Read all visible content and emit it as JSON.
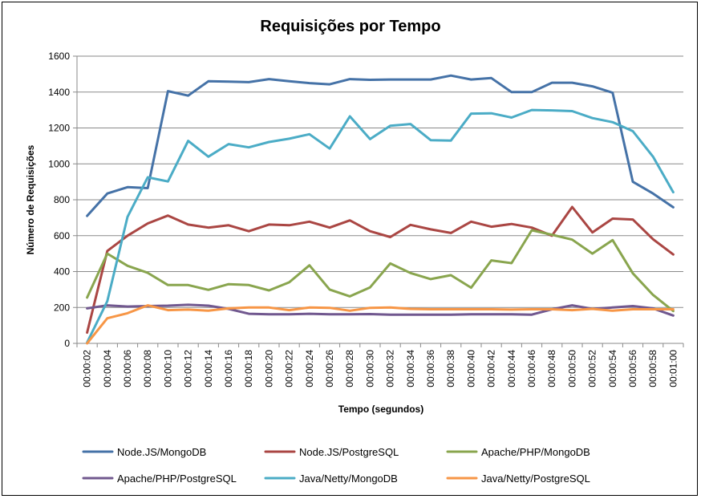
{
  "chart_data": {
    "type": "line",
    "title": "Requisições por Tempo",
    "xlabel": "Tempo (segundos)",
    "ylabel": "Número de Requisições",
    "ylim": [
      0,
      1600
    ],
    "yticks": [
      0,
      200,
      400,
      600,
      800,
      1000,
      1200,
      1400,
      1600
    ],
    "grid": true,
    "legend_position": "bottom",
    "x": [
      "00:00:02",
      "00:00:04",
      "00:00:06",
      "00:00:08",
      "00:00:10",
      "00:00:12",
      "00:00:14",
      "00:00:16",
      "00:00:18",
      "00:00:20",
      "00:00:22",
      "00:00:24",
      "00:00:26",
      "00:00:28",
      "00:00:30",
      "00:00:32",
      "00:00:34",
      "00:00:36",
      "00:00:38",
      "00:00:40",
      "00:00:42",
      "00:00:44",
      "00:00:46",
      "00:00:48",
      "00:00:50",
      "00:00:52",
      "00:00:54",
      "00:00:56",
      "00:00:58",
      "00:01:00"
    ],
    "series": [
      {
        "name": "Node.JS/MongoDB",
        "color": "#4572A7",
        "values": [
          710,
          835,
          870,
          865,
          1405,
          1380,
          1460,
          1458,
          1455,
          1472,
          1460,
          1450,
          1443,
          1472,
          1468,
          1470,
          1470,
          1470,
          1492,
          1470,
          1478,
          1400,
          1400,
          1452,
          1452,
          1432,
          1396,
          900,
          835,
          758
        ]
      },
      {
        "name": "Node.JS/PostgreSQL",
        "color": "#AA4643",
        "values": [
          60,
          515,
          600,
          668,
          712,
          662,
          645,
          658,
          625,
          662,
          658,
          678,
          645,
          685,
          625,
          592,
          660,
          635,
          615,
          678,
          650,
          665,
          645,
          600,
          760,
          618,
          695,
          690,
          580,
          495
        ]
      },
      {
        "name": "Apache/PHP/MongoDB",
        "color": "#89A54E",
        "values": [
          255,
          500,
          432,
          393,
          325,
          325,
          298,
          330,
          325,
          295,
          340,
          435,
          300,
          262,
          312,
          445,
          392,
          358,
          380,
          310,
          462,
          447,
          630,
          605,
          578,
          500,
          575,
          390,
          270,
          180
        ]
      },
      {
        "name": "Apache/PHP/PostgreSQL",
        "color": "#71588F",
        "values": [
          195,
          212,
          205,
          208,
          210,
          215,
          210,
          192,
          165,
          162,
          162,
          165,
          162,
          162,
          163,
          160,
          160,
          160,
          160,
          162,
          162,
          162,
          160,
          190,
          212,
          192,
          200,
          208,
          195,
          155
        ]
      },
      {
        "name": "Java/Netty/MongoDB",
        "color": "#4BACC6",
        "values": [
          5,
          235,
          705,
          925,
          902,
          1128,
          1040,
          1110,
          1092,
          1122,
          1140,
          1165,
          1085,
          1265,
          1138,
          1212,
          1222,
          1132,
          1130,
          1280,
          1282,
          1258,
          1300,
          1298,
          1294,
          1255,
          1232,
          1182,
          1040,
          842
        ]
      },
      {
        "name": "Java/Netty/PostgreSQL",
        "color": "#F79646",
        "values": [
          0,
          140,
          168,
          212,
          185,
          188,
          182,
          195,
          200,
          200,
          185,
          200,
          198,
          182,
          198,
          200,
          192,
          190,
          190,
          190,
          190,
          188,
          190,
          190,
          185,
          192,
          182,
          190,
          190,
          190
        ]
      }
    ]
  }
}
